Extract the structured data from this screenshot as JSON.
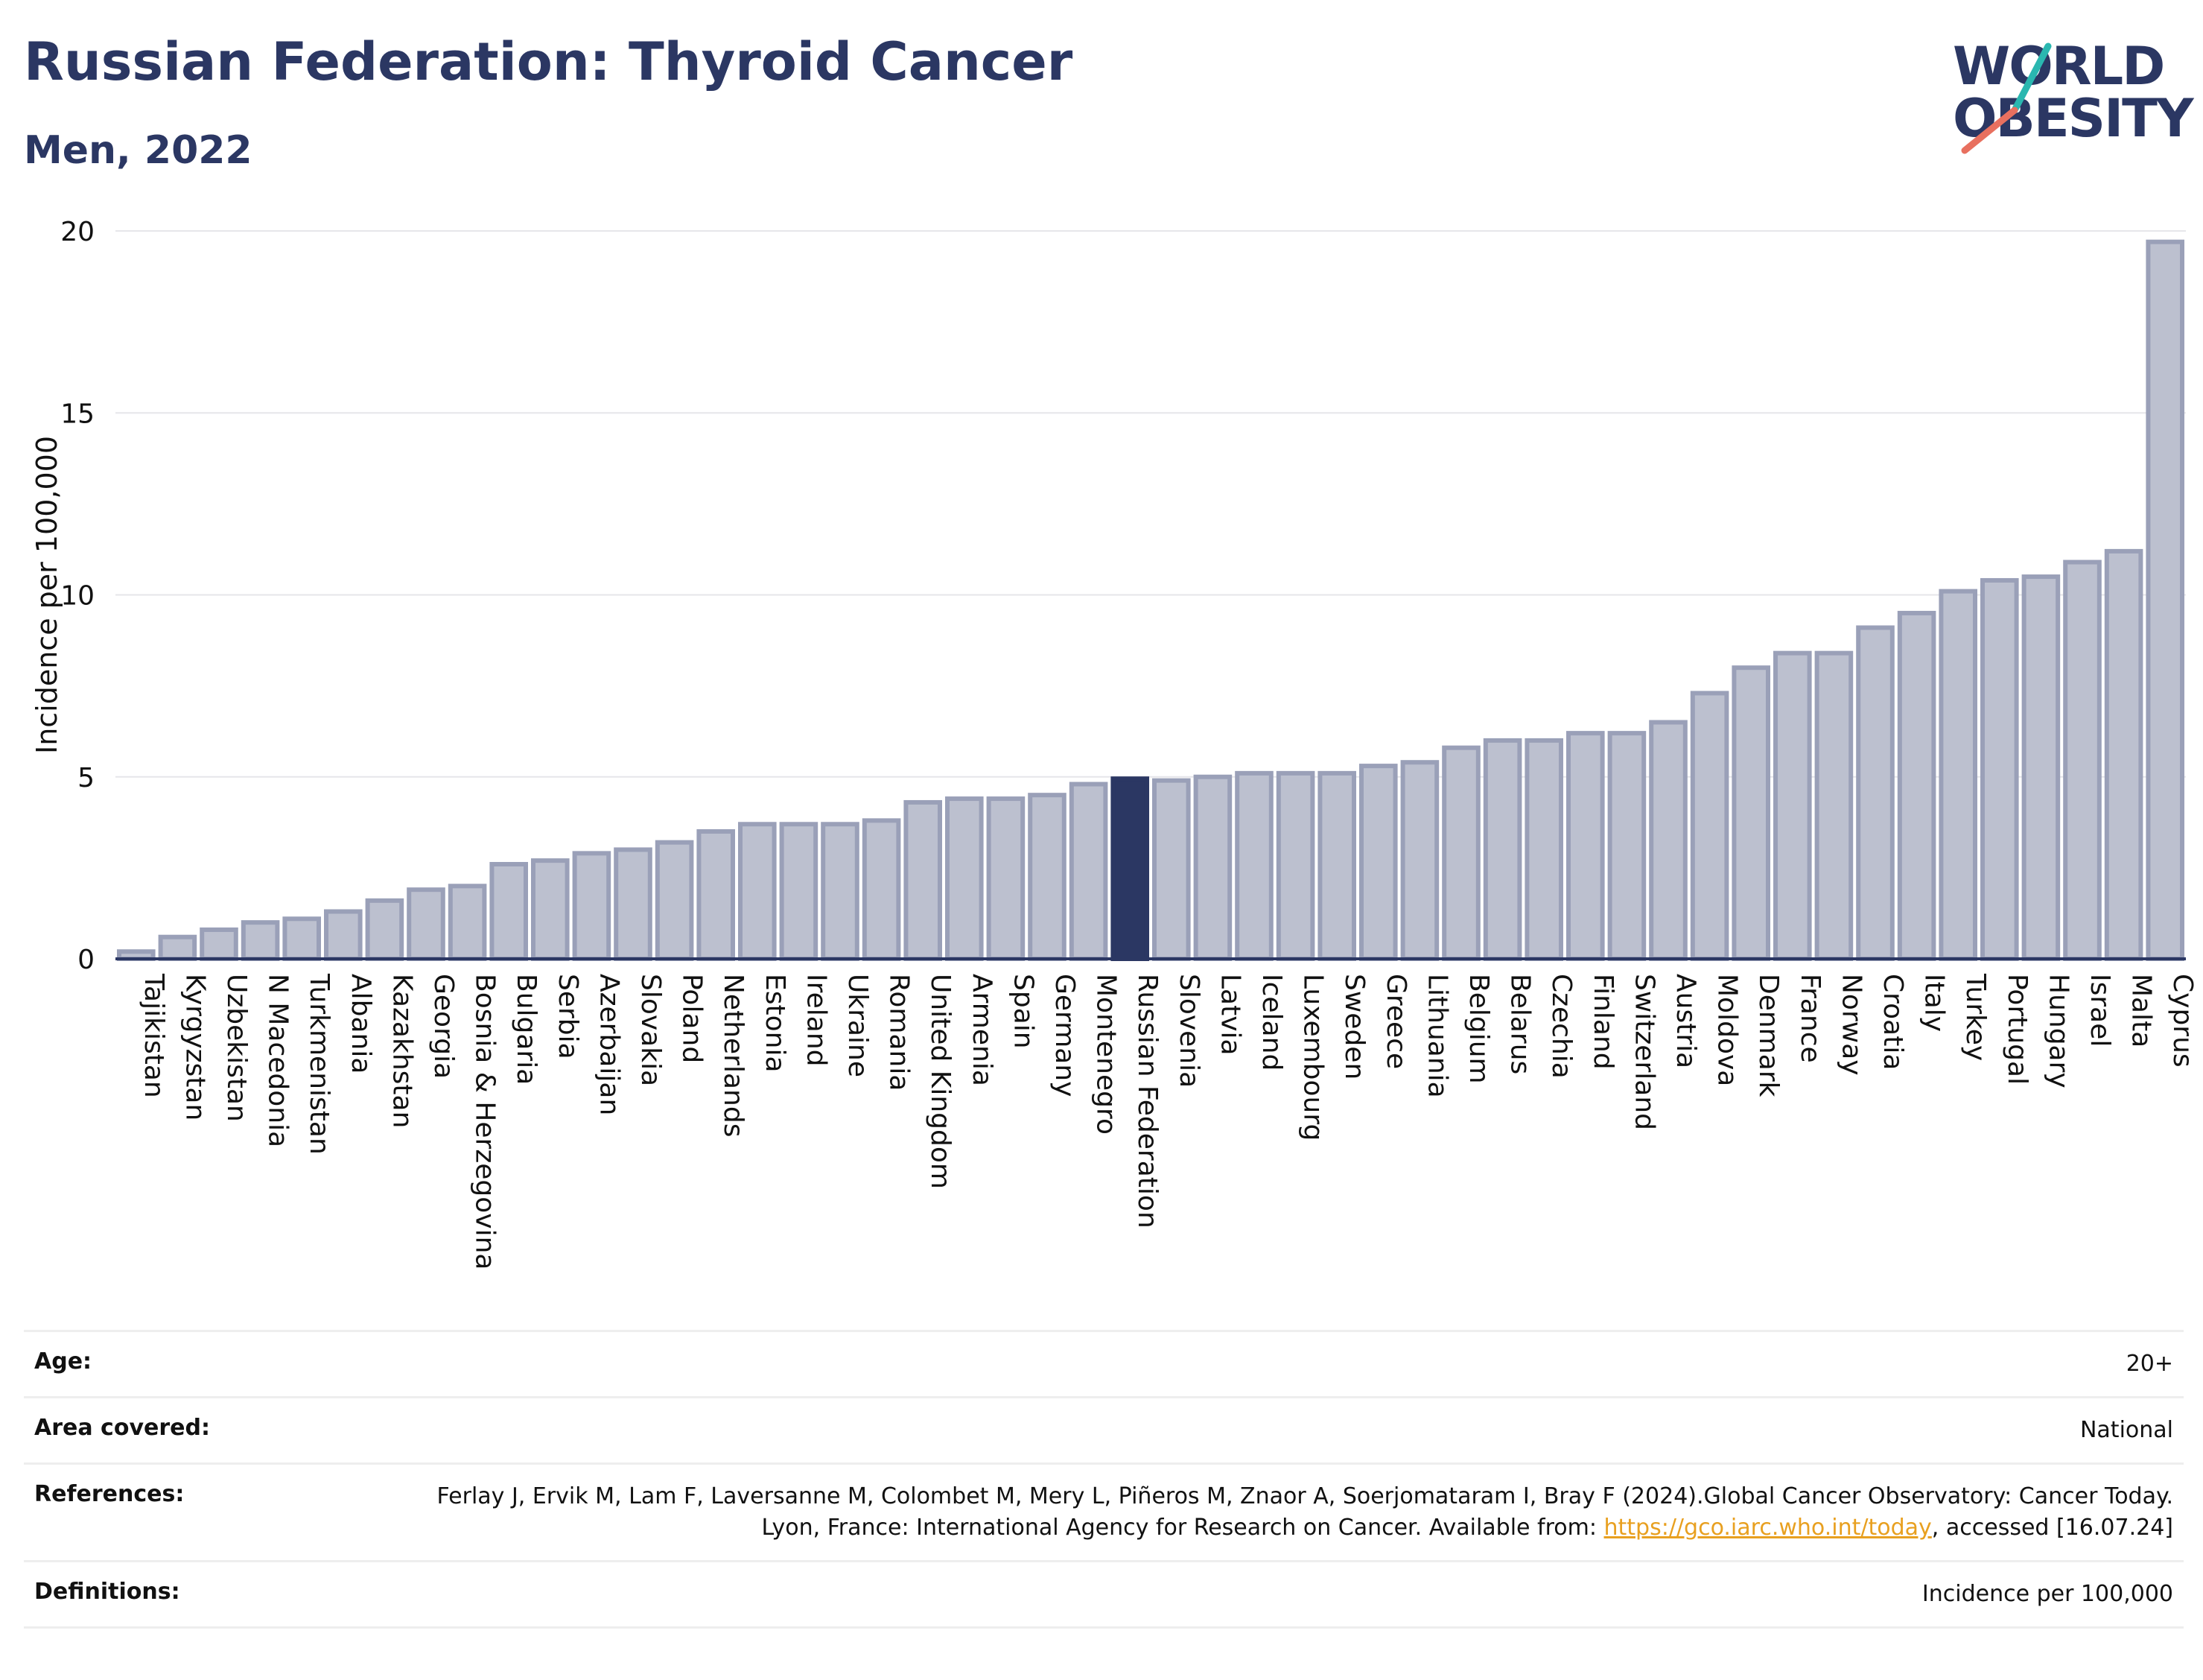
{
  "header": {
    "title": "Russian Federation: Thyroid Cancer",
    "subtitle": "Men, 2022",
    "logo_line1": "WORLD",
    "logo_line2": "OBESITY"
  },
  "colors": {
    "highlight": "#2b3763",
    "bar_fill": "#bcc0cf",
    "bar_stroke": "#9aa0b8",
    "accent_teal": "#2ab7b0",
    "accent_coral": "#e8705f"
  },
  "chart_data": {
    "type": "bar",
    "title": "Russian Federation: Thyroid Cancer",
    "subtitle": "Men, 2022",
    "ylabel": "Incidence per 100,000",
    "xlabel": "",
    "ylim": [
      0,
      20
    ],
    "yticks": [
      0,
      5,
      10,
      15,
      20
    ],
    "grid": true,
    "highlight": "Russian Federation",
    "categories": [
      "Tajikistan",
      "Kyrgyzstan",
      "Uzbekistan",
      "N Macedonia",
      "Turkmenistan",
      "Albania",
      "Kazakhstan",
      "Georgia",
      "Bosnia & Herzegovina",
      "Bulgaria",
      "Serbia",
      "Azerbaijan",
      "Slovakia",
      "Poland",
      "Netherlands",
      "Estonia",
      "Ireland",
      "Ukraine",
      "Romania",
      "United Kingdom",
      "Armenia",
      "Spain",
      "Germany",
      "Montenegro",
      "Russian Federation",
      "Slovenia",
      "Latvia",
      "Iceland",
      "Luxembourg",
      "Sweden",
      "Greece",
      "Lithuania",
      "Belgium",
      "Belarus",
      "Czechia",
      "Finland",
      "Switzerland",
      "Austria",
      "Moldova",
      "Denmark",
      "France",
      "Norway",
      "Croatia",
      "Italy",
      "Turkey",
      "Portugal",
      "Hungary",
      "Israel",
      "Malta",
      "Cyprus"
    ],
    "values": [
      0.2,
      0.6,
      0.8,
      1.0,
      1.1,
      1.3,
      1.6,
      1.9,
      2.0,
      2.6,
      2.7,
      2.9,
      3.0,
      3.2,
      3.5,
      3.7,
      3.7,
      3.7,
      3.8,
      4.3,
      4.4,
      4.4,
      4.5,
      4.8,
      4.95,
      4.9,
      5.0,
      5.1,
      5.1,
      5.1,
      5.3,
      5.4,
      5.8,
      6.0,
      6.0,
      6.2,
      6.2,
      6.5,
      7.3,
      8.0,
      8.4,
      8.4,
      9.1,
      9.5,
      10.1,
      10.4,
      10.5,
      10.9,
      11.2,
      19.7
    ]
  },
  "info": {
    "age_label": "Age:",
    "age_value": "20+",
    "area_label": "Area covered:",
    "area_value": "National",
    "references_label": "References:",
    "references_text_1": "Ferlay J, Ervik M, Lam F, Laversanne M, Colombet M, Mery L, Piñeros M, Znaor A, Soerjomataram I, Bray F (2024).Global Cancer Observatory: Cancer Today. Lyon, France: International Agency for Research on Cancer. Available from: ",
    "references_link": "https://gco.iarc.who.int/today",
    "references_text_2": ", accessed [16.07.24]",
    "definitions_label": "Definitions:",
    "definitions_value": "Incidence per 100,000"
  }
}
